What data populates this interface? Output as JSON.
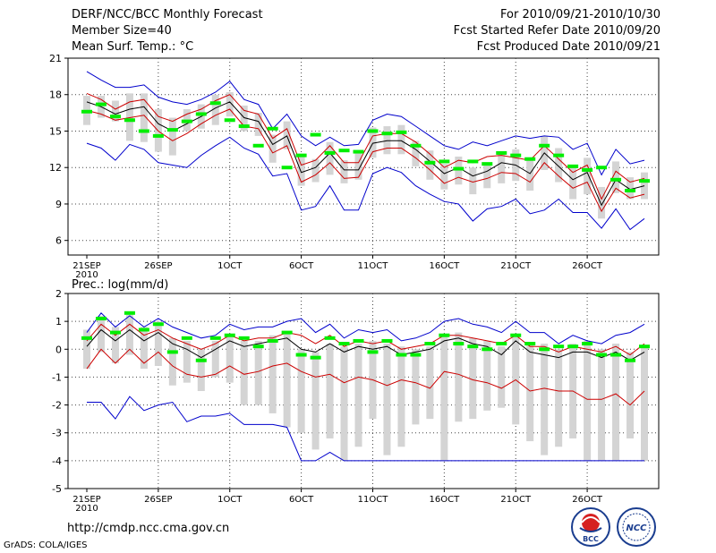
{
  "header": {
    "title": "DERF/NCC/BCC Monthly Forecast",
    "member_size": "Member Size=40",
    "variable": "Mean Surf. Temp.: °C",
    "period": "For 2010/09/21-2010/10/30",
    "started": "Fcst Started Refer Date 2010/09/20",
    "produced": "Fcst Produced Date 2010/09/21"
  },
  "footer": {
    "url": "http://cmdp.ncc.cma.gov.cn",
    "credit": "GrADS: COLA/IGES",
    "logo_bcc": "BCC",
    "logo_ncc": "NCC"
  },
  "chart_data": [
    {
      "type": "line",
      "title": "Mean Surf. Temp.: °C",
      "ylim": [
        4.8,
        21
      ],
      "yticks": [
        6,
        9,
        12,
        15,
        18,
        21
      ],
      "x": [
        1,
        2,
        3,
        4,
        5,
        6,
        7,
        8,
        9,
        10,
        11,
        12,
        13,
        14,
        15,
        16,
        17,
        18,
        19,
        20,
        21,
        22,
        23,
        24,
        25,
        26,
        27,
        28,
        29,
        30,
        31,
        32,
        33,
        34,
        35,
        36,
        37,
        38,
        39,
        40
      ],
      "xticks": [
        "21SEP",
        "26SEP",
        "1OCT",
        "6OCT",
        "11OCT",
        "16OCT",
        "21OCT",
        "26OCT"
      ],
      "xtick_positions": [
        1,
        6,
        11,
        16,
        21,
        26,
        31,
        36
      ],
      "year_label": "2010",
      "series": [
        {
          "name": "ensemble max",
          "color": "#0000cc",
          "values": [
            19.9,
            19.2,
            18.6,
            18.6,
            18.8,
            17.8,
            17.4,
            17.2,
            17.6,
            18.2,
            19.1,
            17.6,
            17.2,
            15.2,
            16.4,
            14.6,
            13.8,
            14.5,
            13.8,
            13.9,
            15.9,
            16.4,
            16.2,
            15.4,
            14.6,
            13.8,
            13.5,
            14.1,
            13.8,
            14.2,
            14.6,
            14.4,
            14.6,
            14.5,
            13.5,
            14.0,
            11.4,
            13.5,
            12.3,
            12.6
          ]
        },
        {
          "name": "upper red",
          "color": "#cc0000",
          "values": [
            18.1,
            17.6,
            16.8,
            17.4,
            17.6,
            16.2,
            15.8,
            16.4,
            16.8,
            17.5,
            18.0,
            16.7,
            16.4,
            14.4,
            15.2,
            12.2,
            12.6,
            13.8,
            12.4,
            12.4,
            14.6,
            14.8,
            14.8,
            14.1,
            13.1,
            12.0,
            12.6,
            12.4,
            12.9,
            13.0,
            12.8,
            12.6,
            13.8,
            12.7,
            11.6,
            12.2,
            9.4,
            11.7,
            10.8,
            11.1
          ]
        },
        {
          "name": "ensemble mean",
          "color": "#000000",
          "values": [
            17.4,
            17.0,
            16.4,
            16.8,
            17.0,
            15.6,
            15.0,
            15.6,
            16.2,
            16.9,
            17.4,
            16.1,
            15.8,
            13.9,
            14.6,
            11.6,
            12.0,
            13.2,
            11.8,
            11.8,
            14.0,
            14.2,
            14.2,
            13.5,
            12.5,
            11.5,
            12.0,
            11.3,
            11.7,
            12.4,
            12.2,
            11.5,
            13.2,
            12.1,
            11.0,
            11.6,
            8.9,
            11.0,
            10.2,
            10.5
          ]
        },
        {
          "name": "lower red",
          "color": "#cc0000",
          "values": [
            16.7,
            16.4,
            15.9,
            16.1,
            16.3,
            15.0,
            14.2,
            14.8,
            15.6,
            16.3,
            16.8,
            15.4,
            15.2,
            13.2,
            13.8,
            10.8,
            11.4,
            12.4,
            11.1,
            11.2,
            13.3,
            13.6,
            13.6,
            12.8,
            11.8,
            10.7,
            11.2,
            10.8,
            11.1,
            11.6,
            11.5,
            10.8,
            12.4,
            11.3,
            10.3,
            10.8,
            8.4,
            10.3,
            9.5,
            9.8
          ]
        },
        {
          "name": "ensemble min",
          "color": "#0000cc",
          "values": [
            14.0,
            13.6,
            12.6,
            13.9,
            13.5,
            12.4,
            12.2,
            12.0,
            13.0,
            13.8,
            14.5,
            13.6,
            13.1,
            11.3,
            11.5,
            8.5,
            8.8,
            10.5,
            8.5,
            8.5,
            11.5,
            12.0,
            11.6,
            10.5,
            9.8,
            9.2,
            9.0,
            7.6,
            8.6,
            8.8,
            9.4,
            8.2,
            8.5,
            9.4,
            8.3,
            8.3,
            7.0,
            8.6,
            6.9,
            7.8
          ]
        }
      ],
      "boxes": {
        "low": [
          15.5,
          16.1,
          15.8,
          14.2,
          14.1,
          13.3,
          13.0,
          15.0,
          15.2,
          15.5,
          16.2,
          15.0,
          14.6,
          12.4,
          13.5,
          10.5,
          10.8,
          11.4,
          10.7,
          11.0,
          12.8,
          13.1,
          13.1,
          12.1,
          11.0,
          10.2,
          10.6,
          9.8,
          10.3,
          10.7,
          10.9,
          10.1,
          11.8,
          10.8,
          9.4,
          9.8,
          7.8,
          9.9,
          9.4,
          9.4
        ],
        "high": [
          17.9,
          17.9,
          17.5,
          18.1,
          18.1,
          16.8,
          16.1,
          16.8,
          17.2,
          18.0,
          18.2,
          17.1,
          16.5,
          14.7,
          15.8,
          13.0,
          12.7,
          14.1,
          12.6,
          13.2,
          15.3,
          15.4,
          15.5,
          14.2,
          13.4,
          12.3,
          12.9,
          12.0,
          12.4,
          13.2,
          13.5,
          12.6,
          14.6,
          13.6,
          12.0,
          12.8,
          10.4,
          12.5,
          11.2,
          11.6
        ]
      },
      "observations": {
        "color": "#00ee00",
        "values": [
          16.6,
          17.2,
          16.2,
          15.9,
          15.0,
          14.6,
          15.1,
          15.8,
          16.4,
          17.3,
          15.9,
          15.4,
          13.8,
          15.2,
          12.0,
          13.0,
          14.7,
          13.2,
          13.4,
          13.3,
          15.0,
          14.8,
          14.9,
          13.8,
          12.4,
          12.5,
          11.9,
          12.5,
          12.3,
          13.2,
          13.0,
          12.7,
          13.8,
          13.0,
          12.1,
          11.8,
          12.0,
          11.0,
          10.1,
          10.9
        ]
      }
    },
    {
      "type": "line",
      "title": "Prec.: log(mm/d)",
      "ylim": [
        -5,
        2
      ],
      "yticks": [
        -5,
        -4,
        -3,
        -2,
        -1,
        0,
        1,
        2
      ],
      "x": [
        1,
        2,
        3,
        4,
        5,
        6,
        7,
        8,
        9,
        10,
        11,
        12,
        13,
        14,
        15,
        16,
        17,
        18,
        19,
        20,
        21,
        22,
        23,
        24,
        25,
        26,
        27,
        28,
        29,
        30,
        31,
        32,
        33,
        34,
        35,
        36,
        37,
        38,
        39,
        40
      ],
      "xticks": [
        "21SEP",
        "26SEP",
        "1OCT",
        "6OCT",
        "11OCT",
        "16OCT",
        "21OCT",
        "26OCT"
      ],
      "xtick_positions": [
        1,
        6,
        11,
        16,
        21,
        26,
        31,
        36
      ],
      "year_label": "2010",
      "series": [
        {
          "name": "ensemble max",
          "color": "#0000cc",
          "values": [
            0.6,
            1.3,
            0.8,
            1.2,
            0.8,
            1.1,
            0.8,
            0.6,
            0.4,
            0.5,
            0.9,
            0.7,
            0.8,
            0.8,
            1.0,
            1.1,
            0.6,
            0.9,
            0.4,
            0.7,
            0.6,
            0.7,
            0.3,
            0.4,
            0.6,
            1.0,
            1.1,
            0.9,
            0.8,
            0.6,
            1.0,
            0.6,
            0.6,
            0.2,
            0.5,
            0.3,
            0.2,
            0.5,
            0.6,
            0.9
          ]
        },
        {
          "name": "upper red",
          "color": "#cc0000",
          "values": [
            0.3,
            0.9,
            0.5,
            0.9,
            0.5,
            0.7,
            0.4,
            0.2,
            0.0,
            0.2,
            0.5,
            0.3,
            0.4,
            0.4,
            0.6,
            0.5,
            0.2,
            0.5,
            0.1,
            0.3,
            0.2,
            0.3,
            0.0,
            0.1,
            0.2,
            0.5,
            0.5,
            0.4,
            0.3,
            0.2,
            0.5,
            0.1,
            0.1,
            -0.1,
            0.1,
            0.0,
            -0.1,
            0.1,
            -0.2,
            0.2
          ]
        },
        {
          "name": "ensemble mean",
          "color": "#000000",
          "values": [
            0.1,
            0.7,
            0.3,
            0.7,
            0.3,
            0.6,
            0.2,
            0.0,
            -0.3,
            0.0,
            0.3,
            0.1,
            0.2,
            0.3,
            0.4,
            0.0,
            -0.1,
            0.2,
            -0.1,
            0.1,
            0.0,
            0.1,
            -0.2,
            -0.1,
            0.0,
            0.3,
            0.4,
            0.2,
            0.1,
            -0.2,
            0.3,
            -0.1,
            -0.2,
            -0.3,
            -0.1,
            -0.1,
            -0.3,
            -0.1,
            -0.4,
            -0.1
          ]
        },
        {
          "name": "lower red",
          "color": "#cc0000",
          "values": [
            -0.7,
            0.0,
            -0.5,
            0.0,
            -0.5,
            -0.1,
            -0.6,
            -0.9,
            -1.0,
            -0.9,
            -0.6,
            -0.9,
            -0.8,
            -0.6,
            -0.5,
            -0.8,
            -1.0,
            -0.9,
            -1.2,
            -1.0,
            -1.1,
            -1.3,
            -1.1,
            -1.2,
            -1.4,
            -0.8,
            -0.9,
            -1.1,
            -1.2,
            -1.4,
            -1.1,
            -1.5,
            -1.4,
            -1.5,
            -1.5,
            -1.8,
            -1.8,
            -1.6,
            -2.0,
            -1.5
          ]
        },
        {
          "name": "ensemble min",
          "color": "#0000cc",
          "values": [
            -1.9,
            -1.9,
            -2.5,
            -1.7,
            -2.2,
            -2.0,
            -1.9,
            -2.6,
            -2.4,
            -2.4,
            -2.3,
            -2.7,
            -2.7,
            -2.7,
            -2.8,
            -4.0,
            -4.0,
            -3.7,
            -4.0,
            -4.0,
            -4.0,
            -4.0,
            -4.0,
            -4.0,
            -4.0,
            -4.0,
            -4.0,
            -4.0,
            -4.0,
            -4.0,
            -4.0,
            -4.0,
            -4.0,
            -4.0,
            -4.0,
            -4.0,
            -4.0,
            -4.0,
            -4.0,
            -4.0
          ]
        }
      ],
      "boxes": {
        "low": [
          -0.7,
          -0.1,
          -0.5,
          -0.2,
          -0.7,
          -0.6,
          -1.3,
          -1.2,
          -1.5,
          -1.0,
          -1.2,
          -2.0,
          -2.0,
          -2.3,
          -2.8,
          -3.0,
          -3.6,
          -3.2,
          -4.0,
          -3.5,
          -2.5,
          -3.8,
          -3.5,
          -2.7,
          -2.5,
          -4.0,
          -2.6,
          -2.5,
          -2.2,
          -2.1,
          -2.7,
          -3.3,
          -3.8,
          -3.5,
          -3.2,
          -4.0,
          -4.0,
          -4.0,
          -3.2,
          -4.0
        ],
        "high": [
          0.7,
          1.2,
          0.8,
          1.3,
          0.8,
          1.0,
          0.4,
          0.3,
          0.0,
          0.3,
          0.5,
          0.3,
          0.3,
          0.5,
          0.6,
          0.0,
          -0.1,
          0.2,
          0.1,
          0.2,
          0.3,
          0.2,
          0.1,
          0.0,
          0.1,
          0.5,
          0.6,
          0.4,
          0.3,
          0.1,
          0.5,
          0.2,
          0.2,
          0.0,
          0.2,
          0.3,
          0.0,
          0.2,
          -0.1,
          0.1
        ]
      },
      "observations": {
        "color": "#00ee00",
        "values": [
          0.4,
          1.1,
          0.6,
          1.3,
          0.7,
          0.9,
          -0.1,
          0.4,
          -0.4,
          0.4,
          0.5,
          0.4,
          0.1,
          0.3,
          0.6,
          -0.2,
          -0.3,
          0.4,
          0.2,
          0.3,
          -0.1,
          0.3,
          -0.2,
          -0.2,
          0.2,
          0.5,
          0.2,
          0.1,
          0.0,
          0.2,
          0.5,
          0.2,
          0.0,
          0.1,
          0.1,
          0.2,
          -0.2,
          -0.2,
          -0.4,
          0.1
        ]
      }
    }
  ]
}
